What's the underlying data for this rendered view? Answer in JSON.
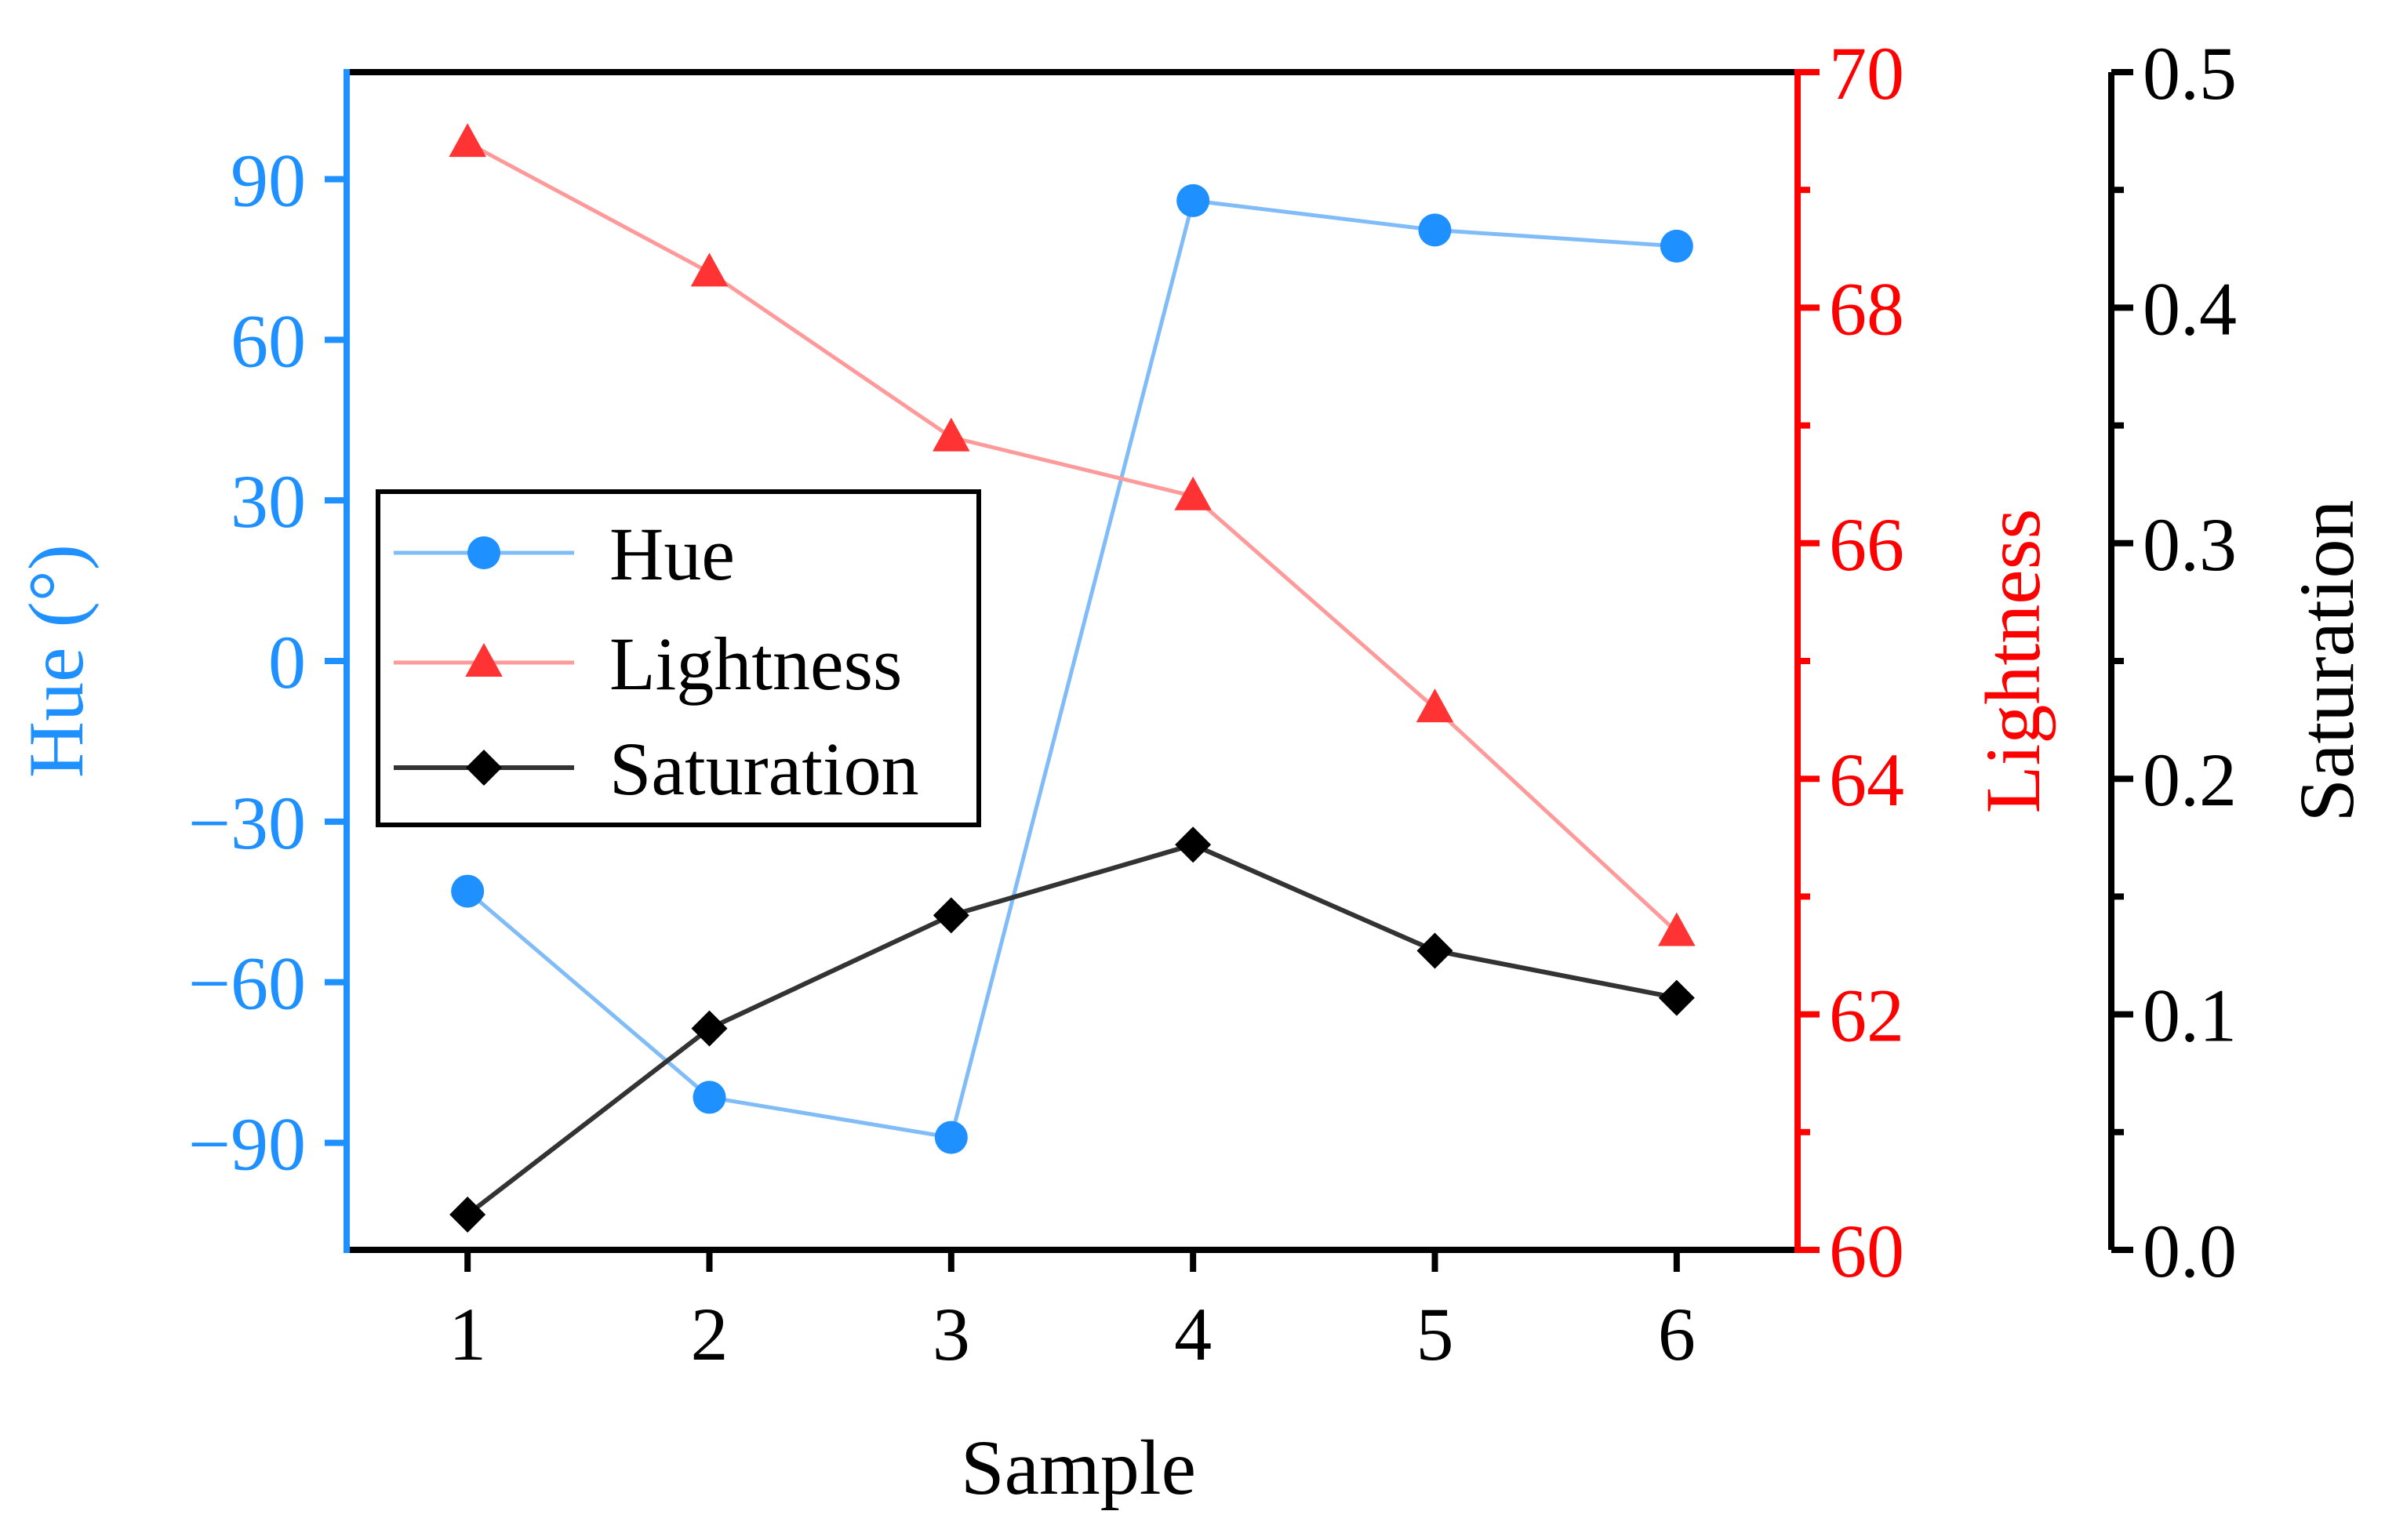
{
  "chart_data": {
    "type": "line",
    "xlabel": "Sample",
    "categories": [
      "1",
      "2",
      "3",
      "4",
      "5",
      "6"
    ],
    "x": [
      1,
      2,
      3,
      4,
      5,
      6
    ],
    "xlim": [
      0.5,
      6.5
    ],
    "axes": {
      "hue": {
        "label": "Hue (°)",
        "color": "#1e90ff",
        "ylim": [
          -110,
          110
        ],
        "ticks": [
          -90,
          -60,
          -30,
          0,
          30,
          60,
          90
        ],
        "tick_labels": [
          "−90",
          "−60",
          "−30",
          "0",
          "30",
          "60",
          "90"
        ]
      },
      "lightness": {
        "label": "Lightness",
        "color": "#ff0000",
        "ylim": [
          60,
          70
        ],
        "ticks": [
          60,
          62,
          64,
          66,
          68,
          70
        ],
        "tick_labels": [
          "60",
          "62",
          "64",
          "66",
          "68",
          "70"
        ],
        "minor_ticks": [
          61,
          63,
          65,
          67,
          69
        ]
      },
      "saturation": {
        "label": "Saturation",
        "color": "#000000",
        "ylim": [
          0,
          0.5
        ],
        "ticks": [
          0,
          0.1,
          0.2,
          0.3,
          0.4,
          0.5
        ],
        "tick_labels": [
          "0.0",
          "0.1",
          "0.2",
          "0.3",
          "0.4",
          "0.5"
        ],
        "minor_ticks": [
          0.05,
          0.15,
          0.25,
          0.35,
          0.45
        ]
      }
    },
    "series": [
      {
        "name": "Hue",
        "axis": "hue",
        "marker": "circle",
        "color": "#1e90ff",
        "line_color": "#7fbcf8",
        "values": [
          -43,
          -81.5,
          -89,
          86,
          80.5,
          77.5
        ]
      },
      {
        "name": "Lightness",
        "axis": "lightness",
        "marker": "triangle",
        "color": "#ff3333",
        "line_color": "#ff9a9a",
        "values": [
          69.4,
          68.3,
          66.9,
          66.4,
          64.6,
          62.7
        ]
      },
      {
        "name": "Saturation",
        "axis": "saturation",
        "marker": "diamond",
        "color": "#000000",
        "line_color": "#333333",
        "values": [
          0.015,
          0.094,
          0.142,
          0.172,
          0.127,
          0.107
        ]
      }
    ],
    "legend": {
      "placement": "center-left"
    },
    "grid": false
  }
}
